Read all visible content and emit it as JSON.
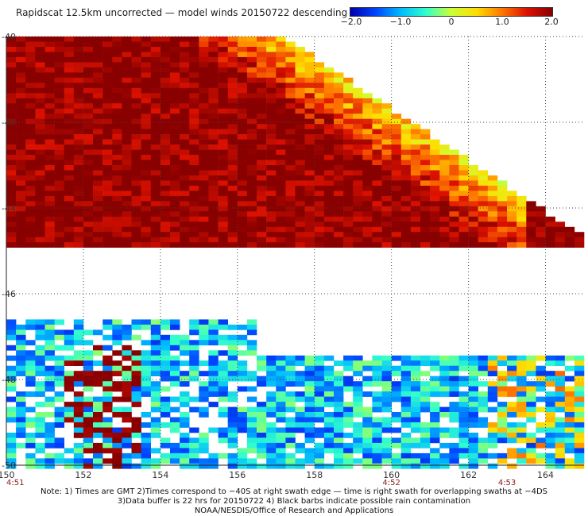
{
  "title": "Rapidscat 12.5km uncorrected — model winds 20150722 descending",
  "colorbar": {
    "ticks": [
      "−2.0",
      "−1.0",
      "0",
      "1.0",
      "2.0"
    ],
    "range": [
      -2.0,
      2.0
    ],
    "colors": [
      "#0000aa",
      "#0044ff",
      "#00bbff",
      "#33ffcc",
      "#ccff33",
      "#ffdd00",
      "#ff7700",
      "#dd1100",
      "#880000"
    ]
  },
  "chart_data": {
    "type": "heatmap",
    "title": "Rapidscat 12.5km uncorrected — model winds 20150722 descending",
    "xlabel": "",
    "ylabel": "",
    "xlim": [
      150,
      165
    ],
    "ylim": [
      -40,
      -50
    ],
    "x_ticks": [
      "150",
      "152",
      "154",
      "156",
      "158",
      "160",
      "162",
      "164"
    ],
    "y_ticks": [
      "-40",
      "-42",
      "-44",
      "-46",
      "-48",
      "-50"
    ],
    "value_range": [
      -2.0,
      2.0
    ],
    "pass_times": [
      {
        "lon": 150,
        "label": "4:51"
      },
      {
        "lon": 160,
        "label": "4:52"
      },
      {
        "lon": 163,
        "label": "4:53"
      }
    ],
    "swath_regions": [
      {
        "name": "upper-right swath",
        "lon_range": [
          157.2,
          165
        ],
        "lat_range": [
          -40,
          -44.7
        ],
        "typical_value": 1.4
      },
      {
        "name": "lower swath west",
        "lon_range": [
          150,
          156.5
        ],
        "lat_range": [
          -46.2,
          -50
        ],
        "typical_value": -0.8
      },
      {
        "name": "lower swath east",
        "lon_range": [
          156.5,
          165
        ],
        "lat_range": [
          -47.2,
          -50
        ],
        "typical_value": -0.6
      }
    ],
    "grid": true
  },
  "notes": {
    "line1": "Note: 1) Times are GMT 2)Times correspond to −40S at right swath edge — time is right swath for overlapping swaths at −4DS",
    "line2": "3)Data buffer is 22 hrs for 20150722 4) Black barbs indicate possible rain contamination",
    "line3": "NOAA/NESDIS/Office of Research and Applications"
  }
}
